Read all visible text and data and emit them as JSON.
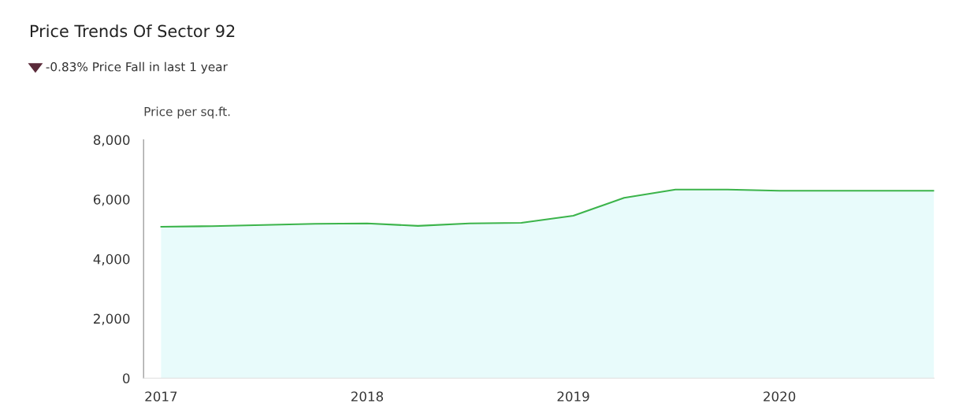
{
  "chart_data": {
    "type": "area",
    "title": "Price Trends Of Sector 92",
    "subtitle": "-0.83% Price Fall in last 1 year",
    "ylabel": "Price per sq.ft.",
    "x": [
      "2017-01",
      "2017-04",
      "2017-07",
      "2017-10",
      "2018-01",
      "2018-04",
      "2018-07",
      "2018-10",
      "2019-01",
      "2019-04",
      "2019-07",
      "2019-10",
      "2020-01",
      "2020-04",
      "2020-07",
      "2020-10"
    ],
    "series": [
      {
        "color": "#3cb44b",
        "values": [
          5080,
          5100,
          5140,
          5180,
          5190,
          5110,
          5190,
          5210,
          5450,
          6050,
          6330,
          6330,
          6290,
          6290,
          6290,
          6290
        ]
      }
    ],
    "xlim": [
      "2016-12",
      "2020-10"
    ],
    "xticks": [
      {
        "value": "2017-01",
        "label": "2017"
      },
      {
        "value": "2018-01",
        "label": "2018"
      },
      {
        "value": "2019-01",
        "label": "2019"
      },
      {
        "value": "2020-01",
        "label": "2020"
      }
    ],
    "ylim": [
      0,
      8000
    ],
    "yticks": [
      {
        "value": 0,
        "label": "0"
      },
      {
        "value": 2000,
        "label": "2,000"
      },
      {
        "value": 4000,
        "label": "4,000"
      },
      {
        "value": 6000,
        "label": "6,000"
      },
      {
        "value": 8000,
        "label": "8,000"
      }
    ],
    "grid": false,
    "legend": false,
    "marker": "none",
    "line_style": "solid"
  }
}
